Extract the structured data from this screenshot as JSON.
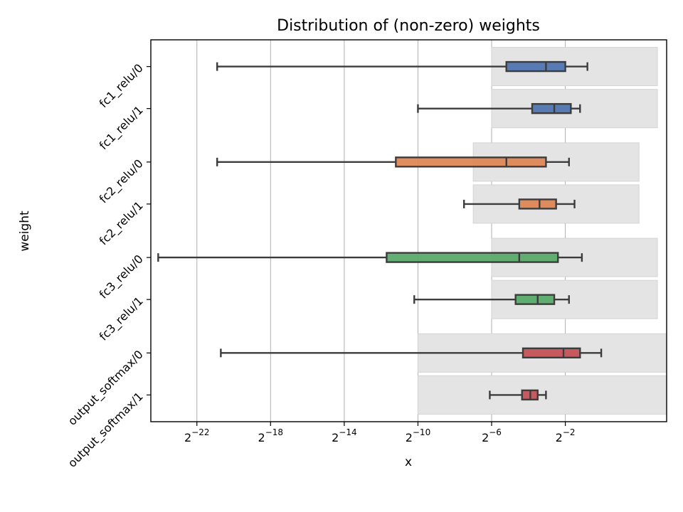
{
  "chart_data": {
    "type": "box",
    "orientation": "horizontal",
    "title": "Distribution of (non-zero) weights",
    "xlabel": "x",
    "ylabel": "weight",
    "x_scale": "log2",
    "xlim_log2": [
      -24.5,
      3.5
    ],
    "x_ticks": [
      {
        "exp": -22,
        "base": "2",
        "sup": "−22"
      },
      {
        "exp": -18,
        "base": "2",
        "sup": "−18"
      },
      {
        "exp": -14,
        "base": "2",
        "sup": "−14"
      },
      {
        "exp": -10,
        "base": "2",
        "sup": "−10"
      },
      {
        "exp": -6,
        "base": "2",
        "sup": "−6"
      },
      {
        "exp": -2,
        "base": "2",
        "sup": "−2"
      }
    ],
    "grid": "vertical",
    "categories": [
      "fc1_relu/0",
      "fc1_relu/1",
      "fc2_relu/0",
      "fc2_relu/1",
      "fc3_relu/0",
      "fc3_relu/1",
      "output_softmax/0",
      "output_softmax/1"
    ],
    "boxes_log2": [
      {
        "category": "fc1_relu/0",
        "color": "#4c72b0",
        "whisker_low": -20.9,
        "q1": -5.2,
        "median": -3.05,
        "q3": -2.0,
        "whisker_high": -0.8
      },
      {
        "category": "fc1_relu/1",
        "color": "#4c72b0",
        "whisker_low": -10.0,
        "q1": -3.8,
        "median": -2.6,
        "q3": -1.7,
        "whisker_high": -1.2
      },
      {
        "category": "fc2_relu/0",
        "color": "#dd8452",
        "whisker_low": -20.9,
        "q1": -11.2,
        "median": -5.2,
        "q3": -3.05,
        "whisker_high": -1.8
      },
      {
        "category": "fc2_relu/1",
        "color": "#dd8452",
        "whisker_low": -7.5,
        "q1": -4.5,
        "median": -3.4,
        "q3": -2.5,
        "whisker_high": -1.5
      },
      {
        "category": "fc3_relu/0",
        "color": "#55a868",
        "whisker_low": -24.1,
        "q1": -11.7,
        "median": -4.5,
        "q3": -2.4,
        "whisker_high": -1.1
      },
      {
        "category": "fc3_relu/1",
        "color": "#55a868",
        "whisker_low": -10.2,
        "q1": -4.7,
        "median": -3.5,
        "q3": -2.6,
        "whisker_high": -1.8
      },
      {
        "category": "output_softmax/0",
        "color": "#c44e52",
        "whisker_low": -20.7,
        "q1": -4.3,
        "median": -2.1,
        "q3": -1.2,
        "whisker_high": -0.05
      },
      {
        "category": "output_softmax/1",
        "color": "#c44e52",
        "whisker_low": -6.1,
        "q1": -4.35,
        "median": -3.9,
        "q3": -3.5,
        "whisker_high": -3.05
      }
    ],
    "ranges_log2": [
      {
        "category": "fc1_relu/0",
        "low": -6.0,
        "high": 3.0
      },
      {
        "category": "fc1_relu/1",
        "low": -6.0,
        "high": 3.0
      },
      {
        "category": "fc2_relu/0",
        "low": -7.0,
        "high": 2.0
      },
      {
        "category": "fc2_relu/1",
        "low": -7.0,
        "high": 2.0
      },
      {
        "category": "fc3_relu/0",
        "low": -6.0,
        "high": 3.0
      },
      {
        "category": "fc3_relu/1",
        "low": -6.0,
        "high": 3.0
      },
      {
        "category": "output_softmax/0",
        "low": -10.0,
        "high": 3.5
      },
      {
        "category": "output_softmax/1",
        "low": -10.0,
        "high": 3.5
      }
    ]
  }
}
